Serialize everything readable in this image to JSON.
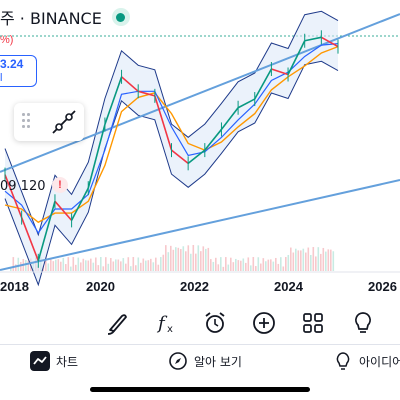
{
  "header": {
    "title": "주 · BINANCE",
    "percent_fragment": "%)",
    "price_value": "3.24",
    "price_sub": "l"
  },
  "indicator": {
    "value": "09 120",
    "warning_symbol": "!"
  },
  "chart_data": {
    "type": "line",
    "x_tick_labels": [
      "2018",
      "2020",
      "2022",
      "2024",
      "2026"
    ],
    "series": [
      {
        "values": [
          14000,
          7500,
          4000,
          9500,
          7200,
          11500,
          29000,
          58000,
          47000,
          44000,
          20000,
          16500,
          20000,
          27000,
          37000,
          42000,
          65000,
          60000,
          98000,
          103000,
          90000
        ]
      },
      {
        "values": [
          11000,
          9000,
          6000,
          8500,
          8500,
          10500,
          20000,
          45000,
          47000,
          47000,
          28000,
          18500,
          19500,
          24000,
          31000,
          39000,
          55000,
          62000,
          78000,
          92000,
          94000
        ]
      },
      {
        "values": [
          9000,
          8500,
          7000,
          8000,
          8000,
          9500,
          16000,
          35000,
          43000,
          46000,
          34000,
          22000,
          20000,
          22500,
          28000,
          34000,
          48000,
          58000,
          68000,
          82000,
          90000
        ]
      }
    ],
    "colors": {
      "price": "#089981",
      "down": "#f23645",
      "ma_fast": "#2962ff",
      "ma_slow": "#ff9800",
      "bands": "#1e3a8a",
      "channel": "#64a0dc",
      "fill": "#dbe8f7"
    }
  },
  "toolbar": {
    "icons": [
      "brush-icon",
      "function-icon",
      "alarm-icon",
      "add-icon",
      "grid-icon",
      "lightbulb-icon"
    ]
  },
  "tabs": [
    {
      "label": "차트",
      "icon": "chart-icon"
    },
    {
      "label": "알아 보기",
      "icon": "compass-icon"
    },
    {
      "label": "아이디어",
      "icon": "lightbulb-icon"
    }
  ]
}
